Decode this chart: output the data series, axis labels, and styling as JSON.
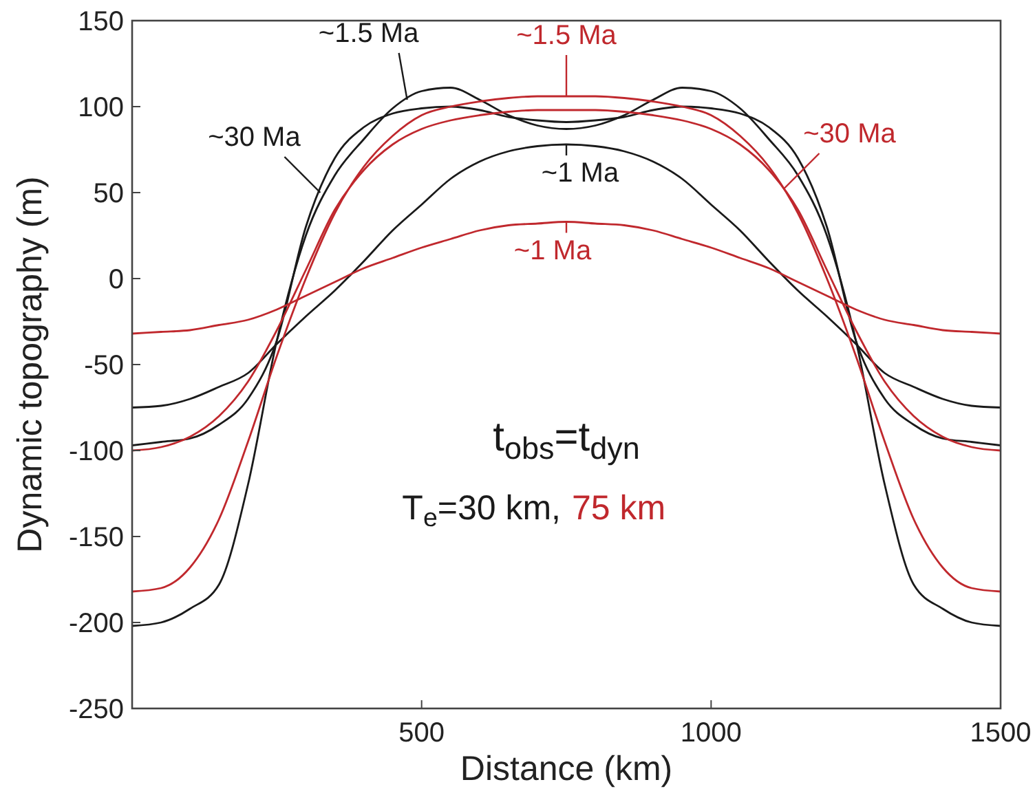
{
  "chart_data": {
    "type": "line",
    "xlabel": "Distance (km)",
    "ylabel": "Dynamic topography (m)",
    "x": [
      0,
      50,
      100,
      150,
      200,
      250,
      300,
      350,
      400,
      450,
      500,
      550,
      600,
      650,
      700,
      750,
      800,
      850,
      900,
      950,
      1000,
      1050,
      1100,
      1150,
      1200,
      1250,
      1300,
      1350,
      1400,
      1450,
      1500
    ],
    "series": [
      {
        "color": "#1a1a1a",
        "values": [
          -202,
          -200,
          -192,
          -178,
          -120,
          -36,
          25,
          60,
          81,
          99,
          109,
          111,
          104,
          95,
          89,
          87,
          89,
          95,
          104,
          111,
          109,
          99,
          81,
          60,
          25,
          -36,
          -120,
          -178,
          -192,
          -200,
          -202
        ]
      },
      {
        "color": "#1a1a1a",
        "values": [
          -97,
          -95,
          -93,
          -85,
          -70,
          -36,
          30,
          70,
          88,
          96,
          99,
          100,
          98,
          94,
          92,
          91,
          92,
          94,
          98,
          100,
          99,
          96,
          88,
          70,
          30,
          -36,
          -70,
          -85,
          -93,
          -95,
          -97
        ]
      },
      {
        "color": "#1a1a1a",
        "values": [
          -75,
          -74,
          -70,
          -63,
          -55,
          -38,
          -22,
          -7,
          10,
          28,
          43,
          58,
          68,
          74,
          77,
          78,
          77,
          74,
          68,
          58,
          43,
          28,
          10,
          -7,
          -22,
          -38,
          -55,
          -63,
          -70,
          -74,
          -75
        ]
      },
      {
        "color": "#c0282d",
        "values": [
          -182,
          -180,
          -168,
          -140,
          -95,
          -45,
          0,
          38,
          65,
          83,
          95,
          100,
          103,
          105,
          106,
          106,
          106,
          105,
          103,
          100,
          95,
          83,
          65,
          38,
          0,
          -45,
          -95,
          -140,
          -168,
          -180,
          -182
        ]
      },
      {
        "color": "#c0282d",
        "values": [
          -100,
          -98,
          -92,
          -80,
          -60,
          -30,
          5,
          40,
          63,
          78,
          87,
          92,
          95,
          97,
          98,
          98,
          98,
          97,
          95,
          92,
          87,
          78,
          63,
          40,
          5,
          -30,
          -60,
          -80,
          -92,
          -98,
          -100
        ]
      },
      {
        "color": "#c0282d",
        "values": [
          -32,
          -31,
          -30,
          -27,
          -24,
          -18,
          -10,
          -2,
          6,
          12,
          18,
          23,
          28,
          31,
          32,
          33,
          32,
          31,
          28,
          23,
          18,
          12,
          6,
          -2,
          -10,
          -18,
          -24,
          -27,
          -30,
          -31,
          -32
        ]
      }
    ],
    "xlim": [
      0,
      1500
    ],
    "xticks": [
      {
        "value": 0,
        "label": null
      },
      500,
      1000,
      1500
    ],
    "ylim": [
      -250,
      150
    ],
    "yticks": [
      -250,
      -200,
      -150,
      -100,
      -50,
      0,
      50,
      100,
      150
    ],
    "grid": false,
    "marker": "none",
    "line_style": "solid",
    "annotations": [
      "t$_{obs}$=t$_{dyn}$",
      "T$_{e}$=30 km,",
      "75 km",
      {
        "text": "~1.5 Ma",
        "x": 475,
        "y": 104
      },
      {
        "text": "~30 Ma",
        "x": 325,
        "y": 50
      },
      {
        "text": "~1 Ma",
        "x": 750,
        "y": 78
      },
      {
        "text": "~1.5 Ma",
        "x": 750,
        "y": 106
      },
      {
        "text": "~30 Ma",
        "x": 1125,
        "y": 52
      },
      {
        "text": "~1 Ma",
        "x": 750,
        "y": 33
      }
    ]
  }
}
